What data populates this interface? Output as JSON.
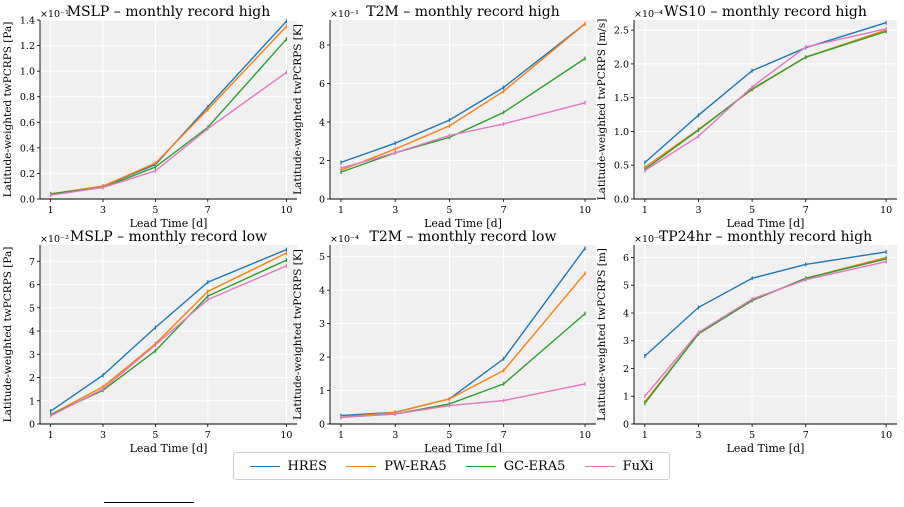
{
  "colors": {
    "HRES": "#1f77b4",
    "PW-ERA5": "#ff7f0e",
    "GC-ERA5": "#2ca02c",
    "FuXi": "#e377c2",
    "panel_bg": "#f0f0f0",
    "grid": "#ffffff"
  },
  "legend": {
    "placement": "bottom-center",
    "items": [
      {
        "name": "HRES",
        "color_key": "HRES"
      },
      {
        "name": "PW-ERA5",
        "color_key": "PW-ERA5"
      },
      {
        "name": "GC-ERA5",
        "color_key": "GC-ERA5"
      },
      {
        "name": "FuXi",
        "color_key": "FuXi"
      }
    ]
  },
  "chart_data": [
    {
      "type": "line",
      "title": "MSLP – monthly record high",
      "xlabel": "Lead Time [d]",
      "ylabel": "Latitude-weighted twPCRPS [Pa]",
      "scale_label": "×10⁻¹",
      "x": [
        1,
        3,
        5,
        7,
        10
      ],
      "xticks": [
        "1",
        "3",
        "5",
        "7",
        "10"
      ],
      "yticks": [
        0.0,
        0.2,
        0.4,
        0.6,
        0.8,
        1.0,
        1.2,
        1.4
      ],
      "ytick_labels": [
        "0.0",
        "0.2",
        "0.4",
        "0.6",
        "0.8",
        "1.0",
        "1.2",
        "1.4"
      ],
      "ylim": [
        0.0,
        1.4
      ],
      "grid": true,
      "series": [
        {
          "name": "HRES",
          "values": [
            0.04,
            0.1,
            0.27,
            0.72,
            1.39
          ]
        },
        {
          "name": "PW-ERA5",
          "values": [
            0.04,
            0.1,
            0.28,
            0.7,
            1.35
          ]
        },
        {
          "name": "GC-ERA5",
          "values": [
            0.04,
            0.09,
            0.25,
            0.56,
            1.25
          ]
        },
        {
          "name": "FuXi",
          "values": [
            0.03,
            0.09,
            0.22,
            0.55,
            0.99
          ]
        }
      ]
    },
    {
      "type": "line",
      "title": "T2M – monthly record high",
      "xlabel": "Lead Time [d]",
      "ylabel": "Latitude-weighted twPCRPS [K]",
      "scale_label": "×10⁻¹",
      "x": [
        1,
        3,
        5,
        7,
        10
      ],
      "xticks": [
        "1",
        "3",
        "5",
        "7",
        "10"
      ],
      "yticks": [
        0,
        2,
        4,
        6,
        8
      ],
      "ytick_labels": [
        "0",
        "2",
        "4",
        "6",
        "8"
      ],
      "ylim": [
        0,
        9.3
      ],
      "grid": true,
      "series": [
        {
          "name": "HRES",
          "values": [
            1.9,
            2.9,
            4.1,
            5.8,
            9.1
          ]
        },
        {
          "name": "PW-ERA5",
          "values": [
            1.5,
            2.6,
            3.8,
            5.6,
            9.1
          ]
        },
        {
          "name": "GC-ERA5",
          "values": [
            1.4,
            2.4,
            3.2,
            4.5,
            7.3
          ]
        },
        {
          "name": "FuXi",
          "values": [
            1.6,
            2.4,
            3.3,
            3.9,
            5.0
          ]
        }
      ]
    },
    {
      "type": "line",
      "title": "WS10 – monthly record high",
      "xlabel": "Lead Time [d]",
      "ylabel": "Latitude-weighted twPCRPS [m/s]",
      "scale_label": "×10⁻⁴",
      "x": [
        1,
        3,
        5,
        7,
        10
      ],
      "xticks": [
        "1",
        "3",
        "5",
        "7",
        "10"
      ],
      "yticks": [
        0.0,
        0.5,
        1.0,
        1.5,
        2.0,
        2.5
      ],
      "ytick_labels": [
        "0.0",
        "0.5",
        "1.0",
        "1.5",
        "2.0",
        "2.5"
      ],
      "ylim": [
        0.0,
        2.65
      ],
      "grid": true,
      "series": [
        {
          "name": "HRES",
          "values": [
            0.54,
            1.24,
            1.9,
            2.24,
            2.61
          ]
        },
        {
          "name": "PW-ERA5",
          "values": [
            0.47,
            1.03,
            1.62,
            2.1,
            2.5
          ]
        },
        {
          "name": "GC-ERA5",
          "values": [
            0.44,
            1.02,
            1.63,
            2.1,
            2.48
          ]
        },
        {
          "name": "FuXi",
          "values": [
            0.42,
            0.93,
            1.66,
            2.25,
            2.52
          ]
        }
      ]
    },
    {
      "type": "line",
      "title": "MSLP – monthly record low",
      "xlabel": "Lead Time [d]",
      "ylabel": "Latitude-weighted twPCRPS [Pa]",
      "scale_label": "×10⁻²",
      "x": [
        1,
        3,
        5,
        7,
        10
      ],
      "xticks": [
        "1",
        "3",
        "5",
        "7",
        "10"
      ],
      "yticks": [
        0,
        1,
        2,
        3,
        4,
        5,
        6,
        7
      ],
      "ytick_labels": [
        "0",
        "1",
        "2",
        "3",
        "4",
        "5",
        "6",
        "7"
      ],
      "ylim": [
        0,
        7.7
      ],
      "grid": true,
      "series": [
        {
          "name": "HRES",
          "values": [
            0.55,
            2.1,
            4.15,
            6.1,
            7.5
          ]
        },
        {
          "name": "PW-ERA5",
          "values": [
            0.4,
            1.6,
            3.45,
            5.7,
            7.35
          ]
        },
        {
          "name": "GC-ERA5",
          "values": [
            0.4,
            1.45,
            3.15,
            5.5,
            7.05
          ]
        },
        {
          "name": "FuXi",
          "values": [
            0.35,
            1.5,
            3.4,
            5.35,
            6.8
          ]
        }
      ]
    },
    {
      "type": "line",
      "title": "T2M – monthly record low",
      "xlabel": "Lead Time [d]",
      "ylabel": "Latitude-weighted twPCRPS [K]",
      "scale_label": "×10⁻⁴",
      "x": [
        1,
        3,
        5,
        7,
        10
      ],
      "xticks": [
        "1",
        "3",
        "5",
        "7",
        "10"
      ],
      "yticks": [
        0,
        1,
        2,
        3,
        4,
        5
      ],
      "ytick_labels": [
        "0",
        "1",
        "2",
        "3",
        "4",
        "5"
      ],
      "ylim": [
        0,
        5.35
      ],
      "grid": true,
      "series": [
        {
          "name": "HRES",
          "values": [
            0.25,
            0.35,
            0.75,
            1.95,
            5.25
          ]
        },
        {
          "name": "PW-ERA5",
          "values": [
            0.2,
            0.35,
            0.75,
            1.6,
            4.5
          ]
        },
        {
          "name": "GC-ERA5",
          "values": [
            0.2,
            0.3,
            0.6,
            1.2,
            3.3
          ]
        },
        {
          "name": "FuXi",
          "values": [
            0.2,
            0.3,
            0.55,
            0.7,
            1.2
          ]
        }
      ]
    },
    {
      "type": "line",
      "title": "TP24hr – monthly record high",
      "xlabel": "Lead Time [d]",
      "ylabel": "Latitude-weighted twPCRPS [m]",
      "scale_label": "×10⁻⁶",
      "x": [
        1,
        3,
        5,
        7,
        10
      ],
      "xticks": [
        "1",
        "3",
        "5",
        "7",
        "10"
      ],
      "yticks": [
        0,
        1,
        2,
        3,
        4,
        5,
        6
      ],
      "ytick_labels": [
        "0",
        "1",
        "2",
        "3",
        "4",
        "5",
        "6"
      ],
      "ylim": [
        0,
        6.45
      ],
      "grid": true,
      "series": [
        {
          "name": "HRES",
          "values": [
            2.45,
            4.2,
            5.25,
            5.75,
            6.2
          ]
        },
        {
          "name": "PW-ERA5",
          "values": [
            0.8,
            3.25,
            4.45,
            5.25,
            6.0
          ]
        },
        {
          "name": "GC-ERA5",
          "values": [
            0.75,
            3.25,
            4.45,
            5.25,
            5.95
          ]
        },
        {
          "name": "FuXi",
          "values": [
            1.0,
            3.3,
            4.5,
            5.2,
            5.85
          ]
        }
      ]
    }
  ]
}
